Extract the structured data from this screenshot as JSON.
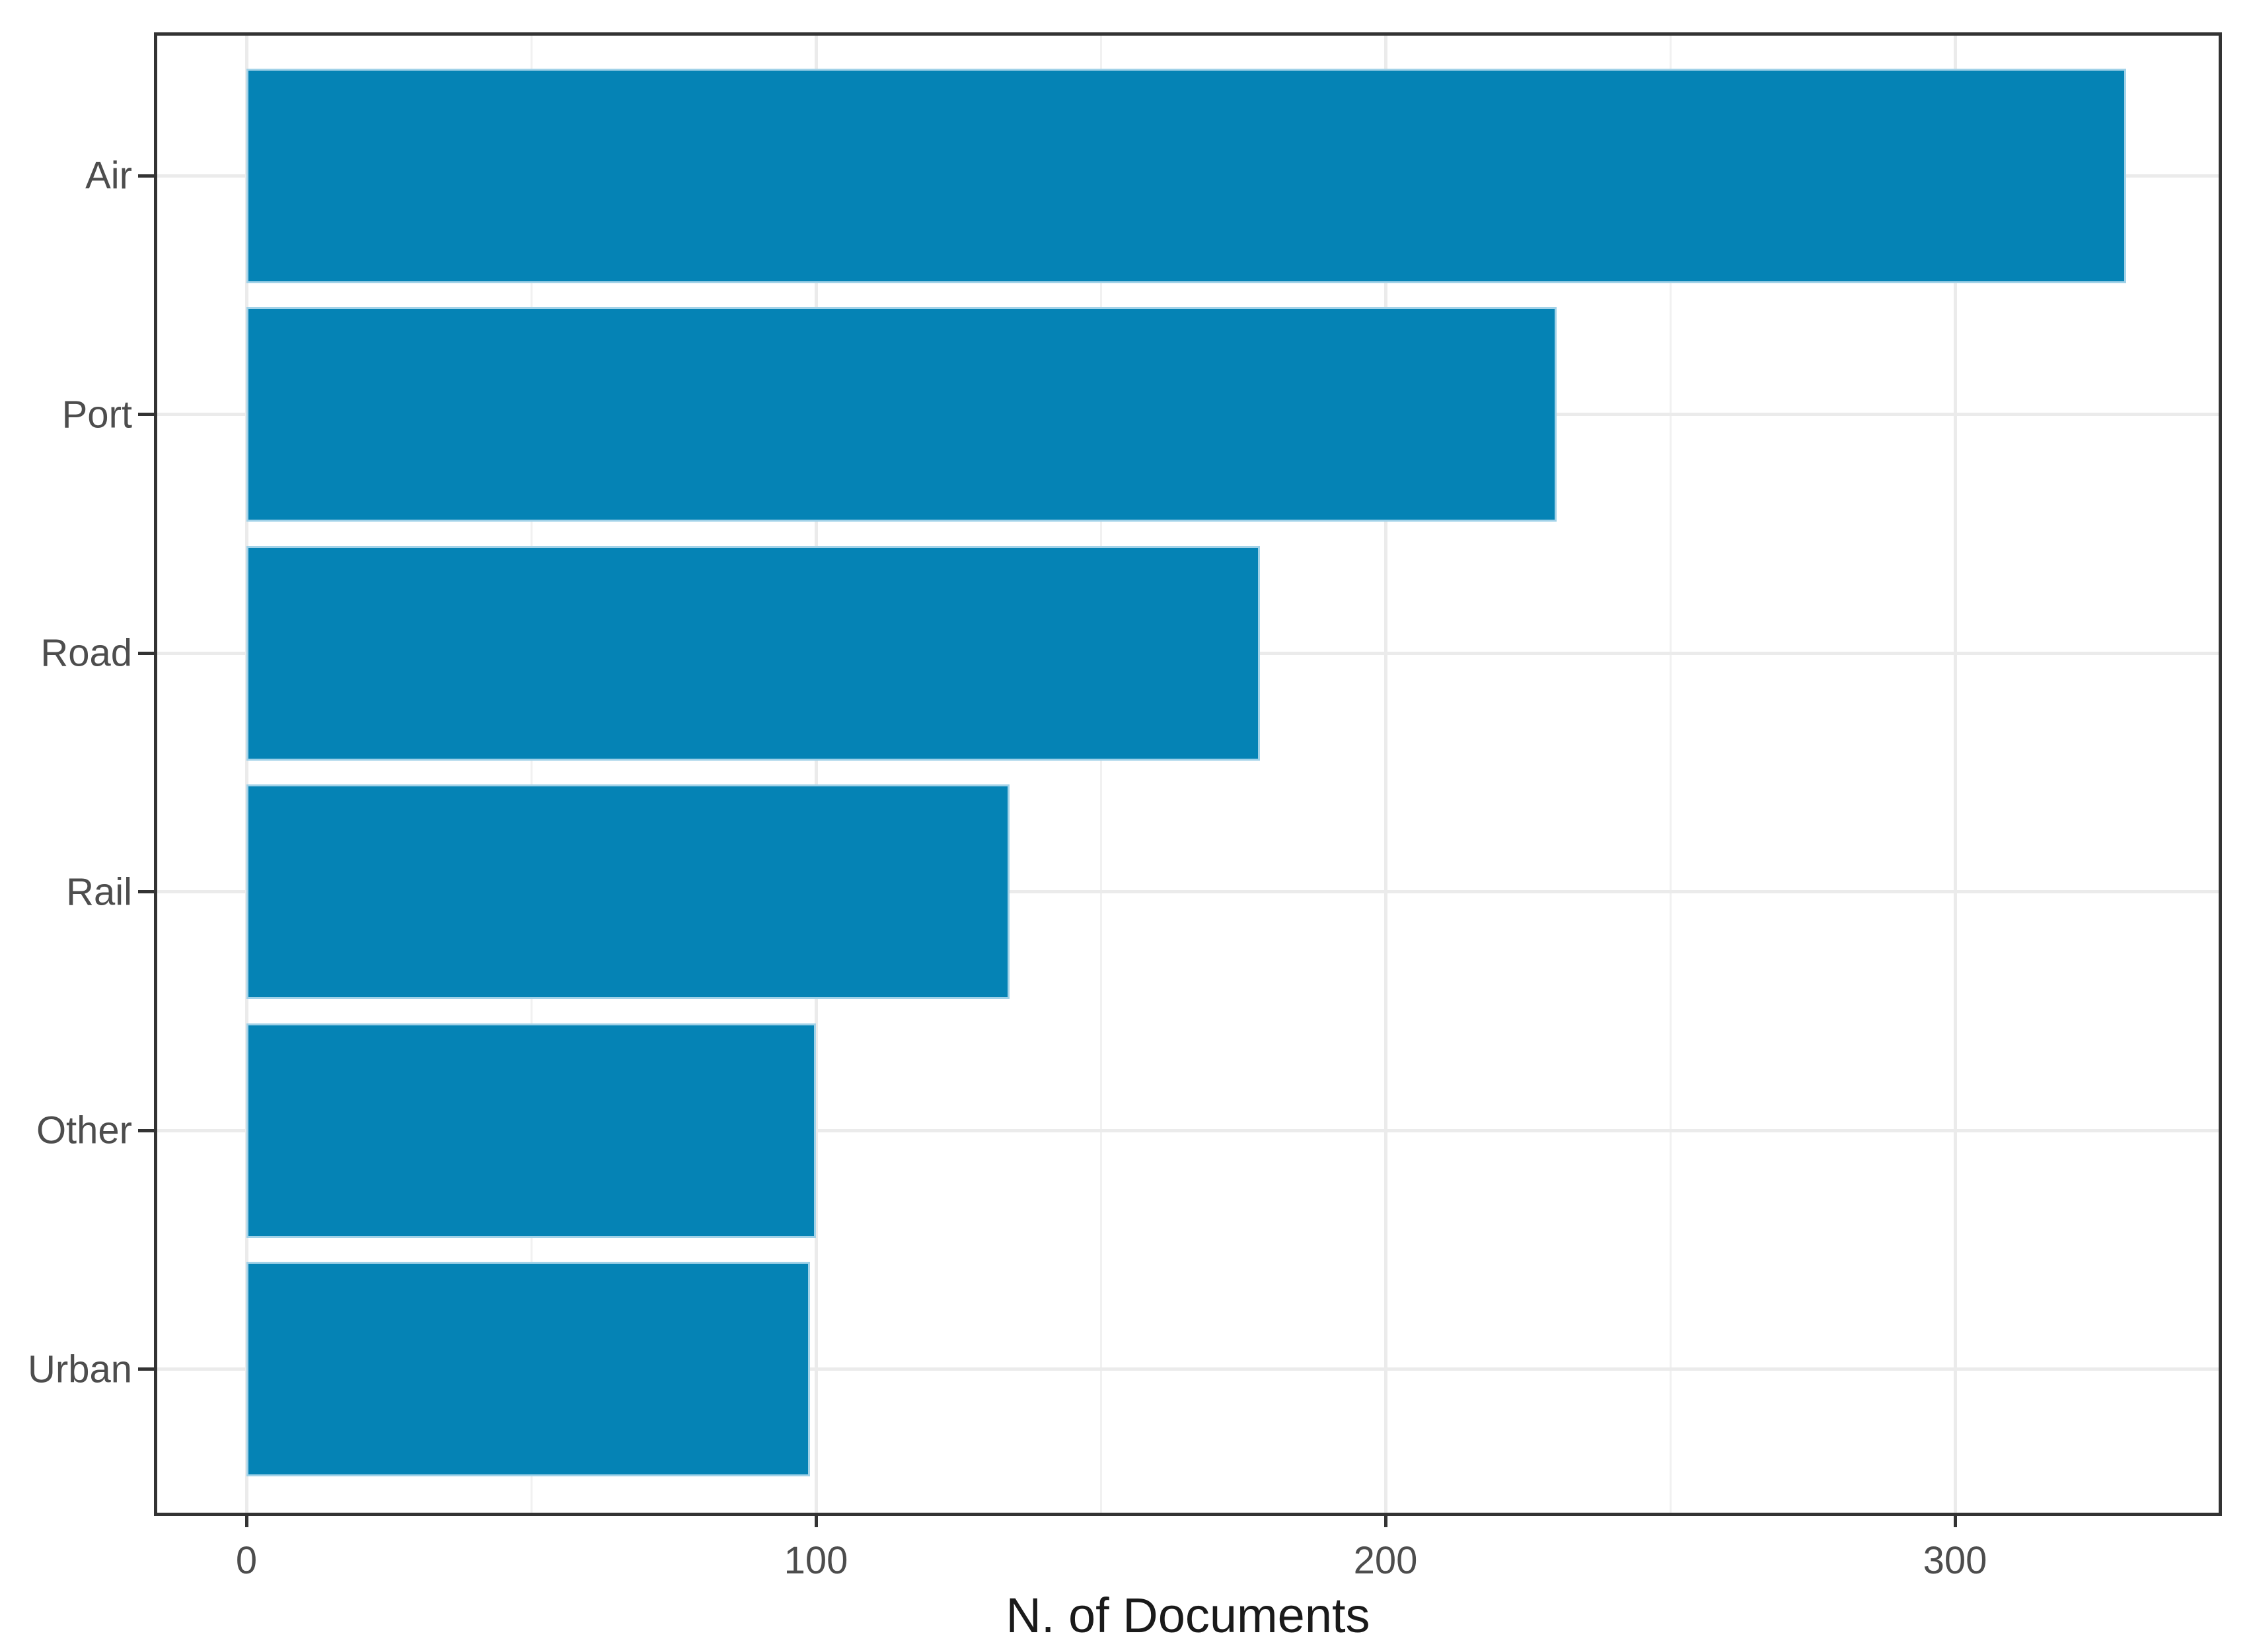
{
  "chart_data": {
    "type": "bar",
    "orientation": "horizontal",
    "title": "",
    "xlabel": "N. of Documents",
    "ylabel": "",
    "categories": [
      "Air",
      "Port",
      "Road",
      "Rail",
      "Other",
      "Urban"
    ],
    "values": [
      330,
      230,
      178,
      134,
      100,
      99
    ],
    "x_ticks": [
      0,
      100,
      200,
      300
    ],
    "x_tick_labels": [
      "0",
      "100",
      "200",
      "300"
    ],
    "x_minor_ticks": [
      50,
      150,
      250
    ],
    "xlim": [
      0,
      346
    ],
    "grid": true,
    "legend_position": "none",
    "colors": {
      "bar_fill": "#0583b5",
      "bar_edge": "#a2d2e8",
      "grid_major": "#ebebeb",
      "grid_minor": "#f1f1f1",
      "panel_border": "#333333",
      "tick_mark": "#333333",
      "axis_text": "#4d4d4d",
      "axis_title": "#1a1a1a"
    }
  }
}
